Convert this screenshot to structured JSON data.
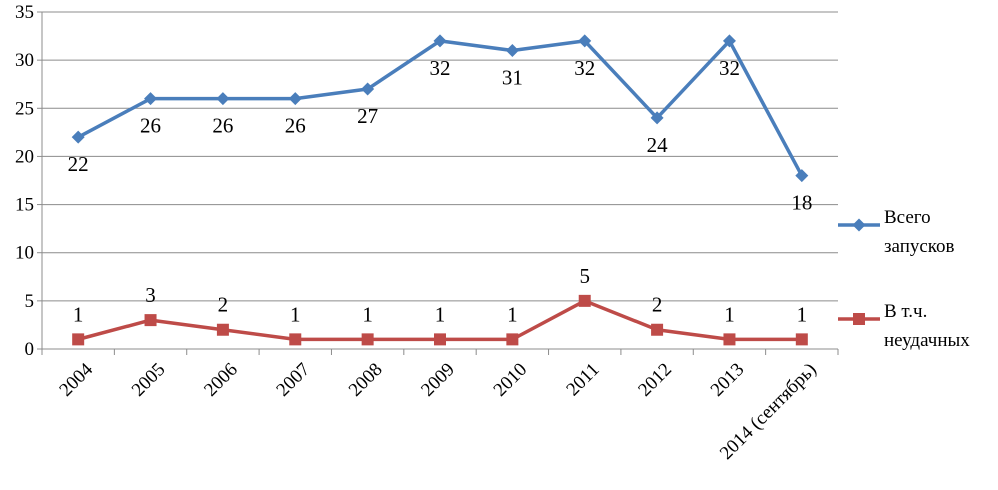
{
  "chart_data": {
    "type": "line",
    "title": "",
    "xlabel": "",
    "ylabel": "",
    "categories": [
      "2004",
      "2005",
      "2006",
      "2007",
      "2008",
      "2009",
      "2010",
      "2011",
      "2012",
      "2013",
      "2014 (сентябрь)"
    ],
    "ylim": [
      0,
      35
    ],
    "yticks": [
      0,
      5,
      10,
      15,
      20,
      25,
      30,
      35
    ],
    "grid": true,
    "legend_position": "right",
    "series": [
      {
        "name": "Всего запусков",
        "legend_lines": [
          "Всего",
          "запусков"
        ],
        "color": "#4a7ebb",
        "marker": "diamond",
        "label_placement": "below",
        "values": [
          22,
          26,
          26,
          26,
          27,
          32,
          31,
          32,
          24,
          32,
          18
        ]
      },
      {
        "name": "В т.ч. неудачных",
        "legend_lines": [
          "В т.ч.",
          "неудачных"
        ],
        "color": "#be4b48",
        "marker": "square",
        "label_placement": "above",
        "values": [
          1,
          3,
          2,
          1,
          1,
          1,
          1,
          5,
          2,
          1,
          1
        ]
      }
    ]
  }
}
